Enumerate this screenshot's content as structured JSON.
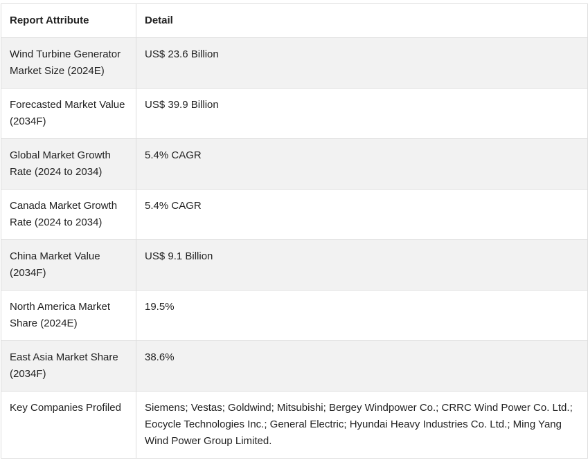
{
  "table": {
    "headers": [
      "Report Attribute",
      "Detail"
    ],
    "rows": [
      {
        "attribute": "Wind Turbine Generator Market Size (2024E)",
        "detail": "US$ 23.6 Billion"
      },
      {
        "attribute": "Forecasted Market Value (2034F)",
        "detail": "US$ 39.9 Billion"
      },
      {
        "attribute": "Global Market Growth Rate (2024 to 2034)",
        "detail": "5.4% CAGR"
      },
      {
        "attribute": "Canada Market Growth Rate (2024 to 2034)",
        "detail": "5.4% CAGR"
      },
      {
        "attribute": "China Market Value (2034F)",
        "detail": "US$ 9.1 Billion"
      },
      {
        "attribute": "North America Market Share (2024E)",
        "detail": "19.5%"
      },
      {
        "attribute": "East Asia Market Share (2034F)",
        "detail": "38.6%"
      },
      {
        "attribute": "Key Companies Profiled",
        "detail": "Siemens; Vestas; Goldwind; Mitsubishi; Bergey Windpower Co.; CRRC Wind Power Co. Ltd.; Eocycle Technologies Inc.; General Electric; Hyundai Heavy Industries Co. Ltd.; Ming Yang Wind Power Group Limited."
      }
    ]
  },
  "colors": {
    "shaded_row": "#f2f2f2",
    "border": "#dddddd",
    "text": "#222222"
  }
}
